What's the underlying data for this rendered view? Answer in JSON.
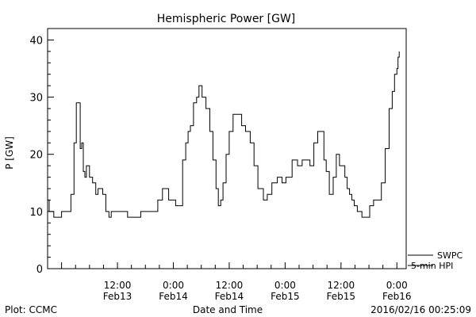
{
  "chart_data": {
    "type": "line",
    "title": "Hemispheric Power [GW]",
    "xlabel": "Date and Time",
    "ylabel": "P [GW]",
    "ylim": [
      0,
      42
    ],
    "yticks": [
      0,
      10,
      20,
      30,
      40
    ],
    "xlim": [
      "2016-02-12 21:00",
      "2016-02-16 02:00"
    ],
    "x_ticks": [
      {
        "time": "2016-02-13 12:00",
        "line1": "12:00",
        "line2": "Feb13"
      },
      {
        "time": "2016-02-14 00:00",
        "line1": "0:00",
        "line2": "Feb14"
      },
      {
        "time": "2016-02-14 12:00",
        "line1": "12:00",
        "line2": "Feb14"
      },
      {
        "time": "2016-02-15 00:00",
        "line1": "0:00",
        "line2": "Feb15"
      },
      {
        "time": "2016-02-15 12:00",
        "line1": "12:00",
        "line2": "Feb15"
      },
      {
        "time": "2016-02-16 00:00",
        "line1": "0:00",
        "line2": "Feb16"
      }
    ],
    "grid": false,
    "legend": {
      "placement": "bottom-right",
      "items": [
        "SWPC",
        "5-min HPI"
      ]
    },
    "footer_left": "Plot: CCMC",
    "footer_right": "2016/02/16 00:25:09",
    "series": [
      {
        "name": "SWPC",
        "color": "#000000",
        "x": [
          "2016-02-12 21:00",
          "2016-02-12 21:20",
          "2016-02-12 21:40",
          "2016-02-12 22:20",
          "2016-02-12 23:20",
          "2016-02-13 00:00",
          "2016-02-13 02:00",
          "2016-02-13 02:40",
          "2016-02-13 03:10",
          "2016-02-13 04:00",
          "2016-02-13 04:20",
          "2016-02-13 04:40",
          "2016-02-13 05:00",
          "2016-02-13 05:20",
          "2016-02-13 06:00",
          "2016-02-13 06:40",
          "2016-02-13 07:20",
          "2016-02-13 07:50",
          "2016-02-13 08:20",
          "2016-02-13 08:50",
          "2016-02-13 09:30",
          "2016-02-13 10:10",
          "2016-02-13 10:40",
          "2016-02-13 11:10",
          "2016-02-13 11:40",
          "2016-02-13 12:20",
          "2016-02-13 13:00",
          "2016-02-13 13:30",
          "2016-02-13 14:10",
          "2016-02-13 15:30",
          "2016-02-13 17:00",
          "2016-02-13 19:00",
          "2016-02-13 20:00",
          "2016-02-13 20:40",
          "2016-02-13 21:40",
          "2016-02-13 23:00",
          "2016-02-14 00:30",
          "2016-02-14 02:00",
          "2016-02-14 02:40",
          "2016-02-14 03:10",
          "2016-02-14 03:40",
          "2016-02-14 04:20",
          "2016-02-14 05:00",
          "2016-02-14 05:30",
          "2016-02-14 06:10",
          "2016-02-14 07:00",
          "2016-02-14 07:50",
          "2016-02-14 08:30",
          "2016-02-14 09:10",
          "2016-02-14 09:40",
          "2016-02-14 10:10",
          "2016-02-14 10:40",
          "2016-02-14 11:20",
          "2016-02-14 12:00",
          "2016-02-14 12:50",
          "2016-02-14 13:40",
          "2016-02-14 14:40",
          "2016-02-14 15:30",
          "2016-02-14 16:30",
          "2016-02-14 17:20",
          "2016-02-14 18:10",
          "2016-02-14 19:20",
          "2016-02-14 20:10",
          "2016-02-14 21:10",
          "2016-02-14 22:20",
          "2016-02-14 23:20",
          "2016-02-15 00:10",
          "2016-02-15 01:30",
          "2016-02-15 02:40",
          "2016-02-15 03:40",
          "2016-02-15 04:40",
          "2016-02-15 05:20",
          "2016-02-15 06:10",
          "2016-02-15 07:00",
          "2016-02-15 07:40",
          "2016-02-15 08:20",
          "2016-02-15 08:50",
          "2016-02-15 09:30",
          "2016-02-15 10:20",
          "2016-02-15 11:00",
          "2016-02-15 11:40",
          "2016-02-15 12:20",
          "2016-02-15 12:50",
          "2016-02-15 13:20",
          "2016-02-15 13:50",
          "2016-02-15 14:20",
          "2016-02-15 14:50",
          "2016-02-15 15:30",
          "2016-02-15 16:30",
          "2016-02-15 17:20",
          "2016-02-15 18:10",
          "2016-02-15 19:00",
          "2016-02-15 19:50",
          "2016-02-15 20:40",
          "2016-02-15 21:30",
          "2016-02-15 22:20",
          "2016-02-15 23:00",
          "2016-02-15 23:30",
          "2016-02-16 00:00",
          "2016-02-16 00:15",
          "2016-02-16 00:30"
        ],
        "y": [
          12,
          10,
          10,
          9,
          9,
          10,
          13,
          22,
          29,
          21,
          22,
          17,
          16,
          18,
          16,
          15,
          13,
          14,
          14,
          13,
          10,
          9,
          10,
          10,
          10,
          10,
          10,
          10,
          9,
          9,
          10,
          10,
          10,
          12,
          14,
          12,
          11,
          19,
          22,
          24,
          25,
          29,
          30,
          32,
          30,
          28,
          24,
          19,
          14,
          11,
          12,
          15,
          20,
          24,
          27,
          27,
          25,
          24,
          22,
          18,
          14,
          12,
          13,
          15,
          16,
          15,
          16,
          19,
          18,
          19,
          19,
          18,
          22,
          24,
          24,
          19,
          17,
          13,
          16,
          20,
          18,
          18,
          16,
          14,
          13,
          12,
          11,
          10,
          9,
          9,
          11,
          12,
          12,
          15,
          21,
          28,
          31,
          34,
          35,
          37,
          38
        ]
      }
    ]
  }
}
